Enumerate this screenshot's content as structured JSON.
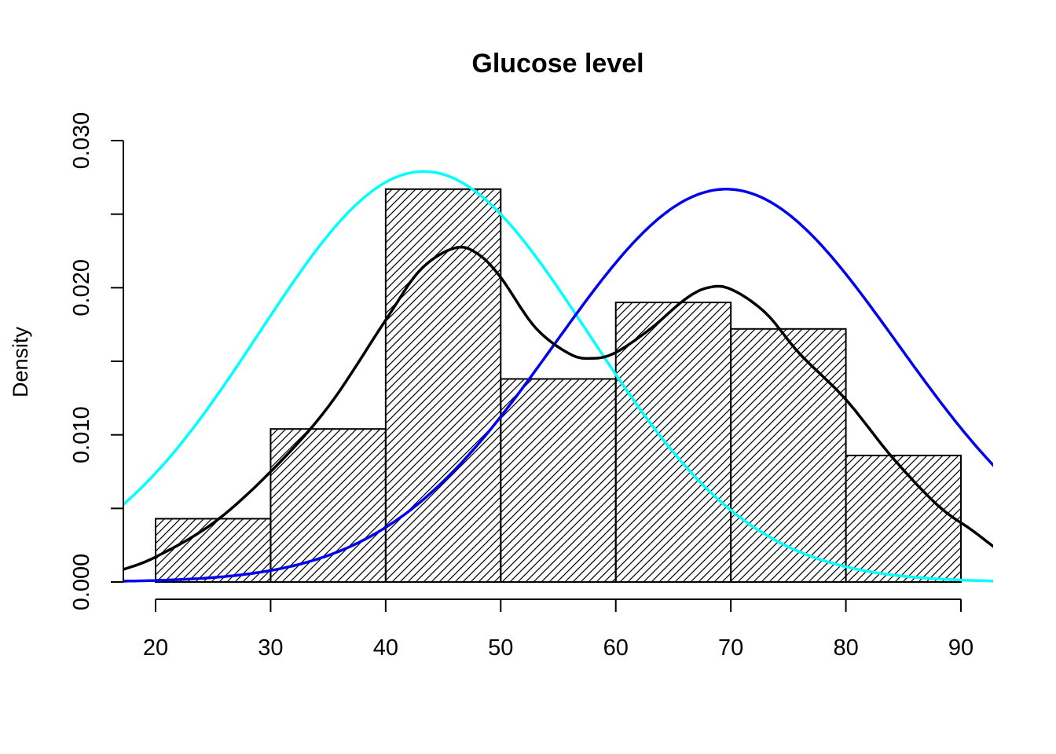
{
  "chart_data": {
    "type": "histogram",
    "title": "Glucose level",
    "xlabel": "",
    "ylabel": "Density",
    "xlim": [
      17.2,
      92.8
    ],
    "ylim": [
      0,
      0.03
    ],
    "x_ticks": [
      20,
      30,
      40,
      50,
      60,
      70,
      80,
      90
    ],
    "y_ticks": [
      0.0,
      0.005,
      0.01,
      0.015,
      0.02,
      0.025,
      0.03
    ],
    "y_tick_labels": [
      "0.000",
      "",
      "0.010",
      "",
      "0.020",
      "",
      "0.030"
    ],
    "grid": false,
    "bins": [
      {
        "from": 20,
        "to": 30,
        "density": 0.0043
      },
      {
        "from": 30,
        "to": 40,
        "density": 0.0104
      },
      {
        "from": 40,
        "to": 50,
        "density": 0.0267
      },
      {
        "from": 50,
        "to": 60,
        "density": 0.0138
      },
      {
        "from": 60,
        "to": 70,
        "density": 0.019
      },
      {
        "from": 70,
        "to": 80,
        "density": 0.0172
      },
      {
        "from": 80,
        "to": 90,
        "density": 0.0086
      }
    ],
    "bar_fill": "hatched",
    "curves": [
      {
        "color": "#00ffff",
        "kind": "normal",
        "mean": 43.3,
        "sd": 14.3,
        "peak_density": 0.0279
      },
      {
        "color": "#0000ee",
        "kind": "normal",
        "mean": 69.6,
        "sd": 14.9,
        "peak_density": 0.0267
      },
      {
        "color": "#000000",
        "kind": "density",
        "x": [
          17,
          20,
          25,
          30,
          35,
          40,
          43,
          46,
          48,
          50,
          53,
          56,
          58,
          60,
          63,
          66,
          68,
          70,
          73,
          76,
          80,
          84,
          88,
          91,
          93
        ],
        "y": [
          0.0008,
          0.0017,
          0.004,
          0.0075,
          0.0119,
          0.0178,
          0.0212,
          0.0227,
          0.0223,
          0.0207,
          0.0173,
          0.0155,
          0.0152,
          0.0156,
          0.0172,
          0.0192,
          0.02,
          0.0199,
          0.0183,
          0.0155,
          0.0124,
          0.0085,
          0.0052,
          0.0035,
          0.0023
        ]
      }
    ]
  }
}
